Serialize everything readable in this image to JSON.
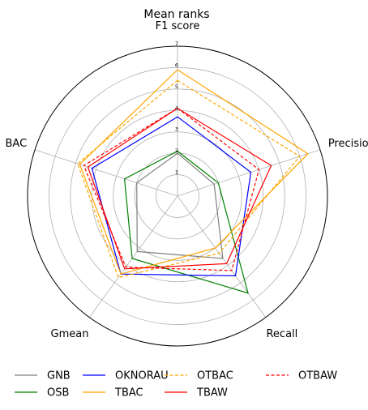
{
  "chart_data": {
    "type": "radar",
    "title": "Mean ranks",
    "axes": [
      "F1 score",
      "Precision",
      "Recall",
      "Gmean",
      "BAC"
    ],
    "r_ticks": [
      "1",
      "2",
      "3",
      "4",
      "5",
      "6",
      "7"
    ],
    "rlim": [
      0,
      7
    ],
    "grid": true,
    "legend_position": "bottom",
    "series": [
      {
        "name": "GNB",
        "color": "#808080",
        "style": "solid",
        "values": [
          2.0,
          1.8,
          3.6,
          3.2,
          2.0
        ]
      },
      {
        "name": "OSB",
        "color": "#008000",
        "style": "solid",
        "values": [
          2.1,
          2.0,
          5.6,
          3.6,
          2.6
        ]
      },
      {
        "name": "OKNORAU",
        "color": "#0000ff",
        "style": "solid",
        "values": [
          3.7,
          3.6,
          4.6,
          4.5,
          4.2
        ]
      },
      {
        "name": "TBAC",
        "color": "#ffa500",
        "style": "solid",
        "values": [
          5.9,
          6.4,
          3.0,
          4.5,
          4.8
        ]
      },
      {
        "name": "OTBAC",
        "color": "#ffa500",
        "style": "dashed",
        "values": [
          5.4,
          6.0,
          3.3,
          4.7,
          4.9
        ]
      },
      {
        "name": "TBAW",
        "color": "#ff0000",
        "style": "solid",
        "values": [
          4.1,
          4.6,
          3.9,
          4.2,
          4.4
        ]
      },
      {
        "name": "OTBAW",
        "color": "#ff0000",
        "style": "dashed",
        "values": [
          4.1,
          4.0,
          4.3,
          4.1,
          4.6
        ]
      }
    ]
  }
}
